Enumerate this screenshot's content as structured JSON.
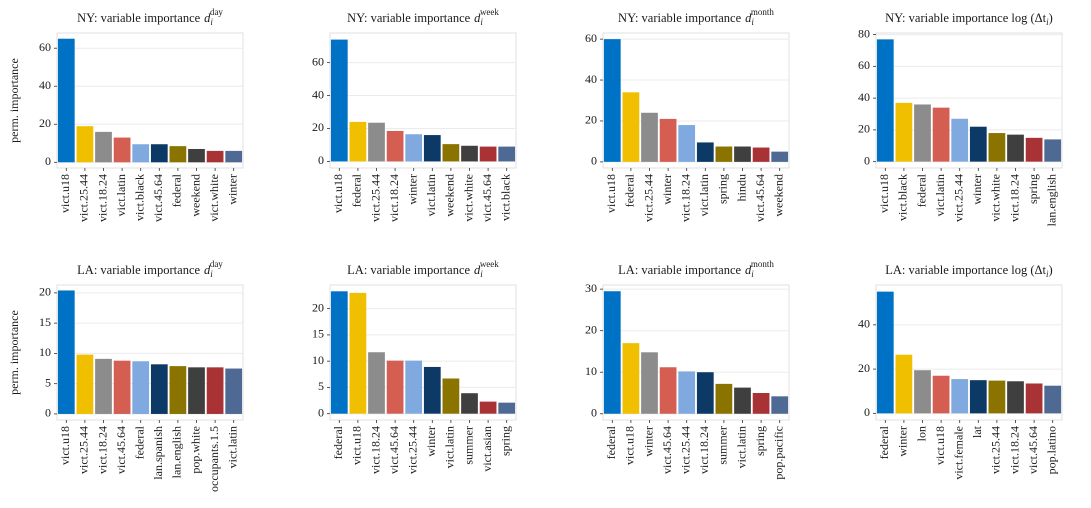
{
  "chart_data": [
    {
      "type": "bar",
      "title": "NY: variable importance",
      "title_math": {
        "base": "d",
        "sub": "i",
        "sup": "day"
      },
      "ylabel": "perm. importance",
      "categories": [
        "vict.u18",
        "vict.25.44",
        "vict.18.24",
        "vict.latin",
        "vict.black",
        "vict.45.64",
        "federal",
        "weekend",
        "vict.white",
        "winter"
      ],
      "values": [
        65,
        19,
        16,
        13,
        9.5,
        9.5,
        8.5,
        7,
        6,
        6
      ],
      "colors": [
        "#0072c6",
        "#f0c000",
        "#8c8c8c",
        "#d55e53",
        "#7fa9df",
        "#0c3966",
        "#8b7300",
        "#3f3f3f",
        "#a83234",
        "#4d6994"
      ],
      "ylim": [
        -3,
        68
      ],
      "yticks": [
        0,
        20,
        40,
        60
      ],
      "grid": true
    },
    {
      "type": "bar",
      "title": "NY: variable importance",
      "title_math": {
        "base": "d",
        "sub": "i",
        "sup": "week"
      },
      "categories": [
        "vict.u18",
        "federal",
        "vict.25.44",
        "vict.18.24",
        "winter",
        "vict.latin",
        "weekend",
        "vict.white",
        "vict.45.64",
        "vict.black"
      ],
      "values": [
        74,
        24,
        23.5,
        18.5,
        16.5,
        16,
        10.5,
        9.5,
        9,
        9
      ],
      "colors": [
        "#0072c6",
        "#f0c000",
        "#8c8c8c",
        "#d55e53",
        "#7fa9df",
        "#0c3966",
        "#8b7300",
        "#3f3f3f",
        "#a83234",
        "#4d6994"
      ],
      "ylim": [
        -4,
        78
      ],
      "yticks": [
        0,
        20,
        40,
        60
      ],
      "grid": true
    },
    {
      "type": "bar",
      "title": "NY: variable importance",
      "title_math": {
        "base": "d",
        "sub": "i",
        "sup": "month"
      },
      "categories": [
        "vict.u18",
        "federal",
        "vict.25.44",
        "winter",
        "vict.18.24",
        "vict.latin",
        "spring",
        "hindu",
        "vict.45.64",
        "weekend"
      ],
      "values": [
        60,
        34,
        24,
        21,
        18,
        9.5,
        7.5,
        7.5,
        7,
        5
      ],
      "colors": [
        "#0072c6",
        "#f0c000",
        "#8c8c8c",
        "#d55e53",
        "#7fa9df",
        "#0c3966",
        "#8b7300",
        "#3f3f3f",
        "#a83234",
        "#4d6994"
      ],
      "ylim": [
        -3,
        63
      ],
      "yticks": [
        0,
        20,
        40,
        60
      ],
      "grid": true
    },
    {
      "type": "bar",
      "title": "NY: variable importance log (Δt",
      "title_math": {
        "sub": "i",
        "tail": ")"
      },
      "categories": [
        "vict.u18",
        "vict.black",
        "federal",
        "vict.latin",
        "vict.25.44",
        "winter",
        "vict.white",
        "vict.18.24",
        "spring",
        "lan.english"
      ],
      "values": [
        77,
        37,
        36,
        34,
        27,
        22,
        18,
        17,
        15,
        14
      ],
      "colors": [
        "#0072c6",
        "#f0c000",
        "#8c8c8c",
        "#d55e53",
        "#7fa9df",
        "#0c3966",
        "#8b7300",
        "#3f3f3f",
        "#a83234",
        "#4d6994"
      ],
      "ylim": [
        -4,
        81
      ],
      "yticks": [
        0,
        20,
        40,
        60,
        80
      ],
      "grid": true
    },
    {
      "type": "bar",
      "title": "LA: variable importance",
      "title_math": {
        "base": "d",
        "sub": "i",
        "sup": "day"
      },
      "ylabel": "perm. importance",
      "categories": [
        "vict.u18",
        "vict.25.44",
        "vict.18.24",
        "vict.45.64",
        "federal",
        "lan.spanish",
        "lan.english",
        "pop.white",
        "occupants.1.5",
        "vict.latin"
      ],
      "values": [
        20.4,
        9.8,
        9.1,
        8.8,
        8.7,
        8.2,
        7.9,
        7.7,
        7.7,
        7.5
      ],
      "colors": [
        "#0072c6",
        "#f0c000",
        "#8c8c8c",
        "#d55e53",
        "#7fa9df",
        "#0c3966",
        "#8b7300",
        "#3f3f3f",
        "#a83234",
        "#4d6994"
      ],
      "ylim": [
        -1,
        21.3
      ],
      "yticks": [
        0,
        5,
        10,
        15,
        20
      ],
      "grid": true
    },
    {
      "type": "bar",
      "title": "LA: variable importance",
      "title_math": {
        "base": "d",
        "sub": "i",
        "sup": "week"
      },
      "categories": [
        "federal",
        "vict.u18",
        "vict.18.24",
        "vict.45.64",
        "vict.25.44",
        "winter",
        "vict.latin",
        "summer",
        "vict.asian",
        "spring"
      ],
      "values": [
        23.3,
        23,
        11.7,
        10.1,
        10.1,
        8.9,
        6.7,
        3.9,
        2.3,
        2.1
      ],
      "colors": [
        "#0072c6",
        "#f0c000",
        "#8c8c8c",
        "#d55e53",
        "#7fa9df",
        "#0c3966",
        "#8b7300",
        "#3f3f3f",
        "#a83234",
        "#4d6994"
      ],
      "ylim": [
        -1.2,
        24.5
      ],
      "yticks": [
        0,
        5,
        10,
        15,
        20
      ],
      "grid": true
    },
    {
      "type": "bar",
      "title": "LA: variable importance",
      "title_math": {
        "base": "d",
        "sub": "i",
        "sup": "month"
      },
      "categories": [
        "federal",
        "vict.u18",
        "winter",
        "vict.45.64",
        "vict.25.44",
        "vict.18.24",
        "summer",
        "vict.latin",
        "spring",
        "pop.pacific"
      ],
      "values": [
        29.5,
        17,
        14.8,
        11.2,
        10.2,
        10,
        7.2,
        6.3,
        5,
        4.2
      ],
      "colors": [
        "#0072c6",
        "#f0c000",
        "#8c8c8c",
        "#d55e53",
        "#7fa9df",
        "#0c3966",
        "#8b7300",
        "#3f3f3f",
        "#a83234",
        "#4d6994"
      ],
      "ylim": [
        -1.5,
        31
      ],
      "yticks": [
        0,
        10,
        20,
        30
      ],
      "grid": true
    },
    {
      "type": "bar",
      "title": "LA: variable importance log (Δt",
      "title_math": {
        "sub": "i",
        "tail": ")"
      },
      "categories": [
        "federal",
        "winter",
        "lon",
        "vict.u18",
        "vict.female",
        "lat",
        "vict.25.44",
        "vict.18.24",
        "vict.45.64",
        "pop.latino"
      ],
      "values": [
        55,
        26.5,
        19.5,
        17,
        15.5,
        15,
        14.8,
        14.5,
        13.5,
        12.5
      ],
      "colors": [
        "#0072c6",
        "#f0c000",
        "#8c8c8c",
        "#d55e53",
        "#7fa9df",
        "#0c3966",
        "#8b7300",
        "#3f3f3f",
        "#a83234",
        "#4d6994"
      ],
      "ylim": [
        -3,
        58
      ],
      "yticks": [
        0,
        20,
        40
      ],
      "grid": true
    }
  ]
}
